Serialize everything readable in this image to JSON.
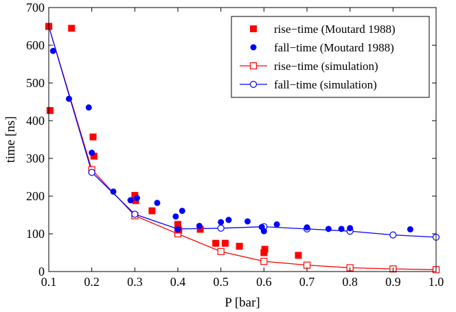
{
  "chart_data": {
    "type": "scatter",
    "title": "",
    "xlabel": "P [bar]",
    "ylabel": "time [ns]",
    "xlim": [
      0.1,
      1.0
    ],
    "ylim": [
      0,
      700
    ],
    "xticks": [
      "0.1",
      "0.2",
      "0.3",
      "0.4",
      "0.5",
      "0.6",
      "0.7",
      "0.8",
      "0.9",
      "1.0"
    ],
    "yticks": [
      "0",
      "100",
      "200",
      "300",
      "400",
      "500",
      "600",
      "700"
    ],
    "grid": false,
    "legend_position": "top-right",
    "series": [
      {
        "name": "rise−time (Moutard 1988)",
        "color": "#ff0000",
        "marker": "filled-square",
        "line": false,
        "points": [
          [
            0.1,
            650
          ],
          [
            0.103,
            427
          ],
          [
            0.153,
            645
          ],
          [
            0.203,
            357
          ],
          [
            0.205,
            306
          ],
          [
            0.3,
            202
          ],
          [
            0.302,
            188
          ],
          [
            0.34,
            161
          ],
          [
            0.4,
            125
          ],
          [
            0.402,
            110
          ],
          [
            0.452,
            112
          ],
          [
            0.488,
            75
          ],
          [
            0.51,
            75
          ],
          [
            0.543,
            67
          ],
          [
            0.6,
            50
          ],
          [
            0.602,
            59
          ],
          [
            0.68,
            43
          ]
        ]
      },
      {
        "name": "fall−time (Moutard 1988)",
        "color": "#0000ff",
        "marker": "filled-circle",
        "line": false,
        "points": [
          [
            0.11,
            585
          ],
          [
            0.147,
            458
          ],
          [
            0.193,
            435
          ],
          [
            0.2,
            315
          ],
          [
            0.25,
            212
          ],
          [
            0.29,
            189
          ],
          [
            0.305,
            195
          ],
          [
            0.352,
            182
          ],
          [
            0.395,
            146
          ],
          [
            0.4,
            112
          ],
          [
            0.41,
            161
          ],
          [
            0.45,
            121
          ],
          [
            0.5,
            131
          ],
          [
            0.518,
            137
          ],
          [
            0.562,
            133
          ],
          [
            0.595,
            118
          ],
          [
            0.6,
            107
          ],
          [
            0.63,
            125
          ],
          [
            0.7,
            117
          ],
          [
            0.75,
            113
          ],
          [
            0.78,
            113
          ],
          [
            0.8,
            115
          ],
          [
            0.94,
            112
          ]
        ]
      },
      {
        "name": "rise−time (simulation)",
        "color": "#ff0000",
        "marker": "open-square",
        "line": true,
        "points": [
          [
            0.1,
            650
          ],
          [
            0.2,
            270
          ],
          [
            0.3,
            148
          ],
          [
            0.4,
            100
          ],
          [
            0.5,
            53
          ],
          [
            0.6,
            27
          ],
          [
            0.7,
            17
          ],
          [
            0.8,
            10
          ],
          [
            0.9,
            7
          ],
          [
            1.0,
            5
          ]
        ]
      },
      {
        "name": "fall−time (simulation)",
        "color": "#0000ff",
        "marker": "open-circle",
        "line": true,
        "points": [
          [
            0.1,
            650
          ],
          [
            0.2,
            263
          ],
          [
            0.3,
            152
          ],
          [
            0.4,
            113
          ],
          [
            0.5,
            115
          ],
          [
            0.6,
            119
          ],
          [
            0.7,
            113
          ],
          [
            0.8,
            107
          ],
          [
            0.9,
            97
          ],
          [
            1.0,
            91
          ]
        ]
      }
    ]
  }
}
